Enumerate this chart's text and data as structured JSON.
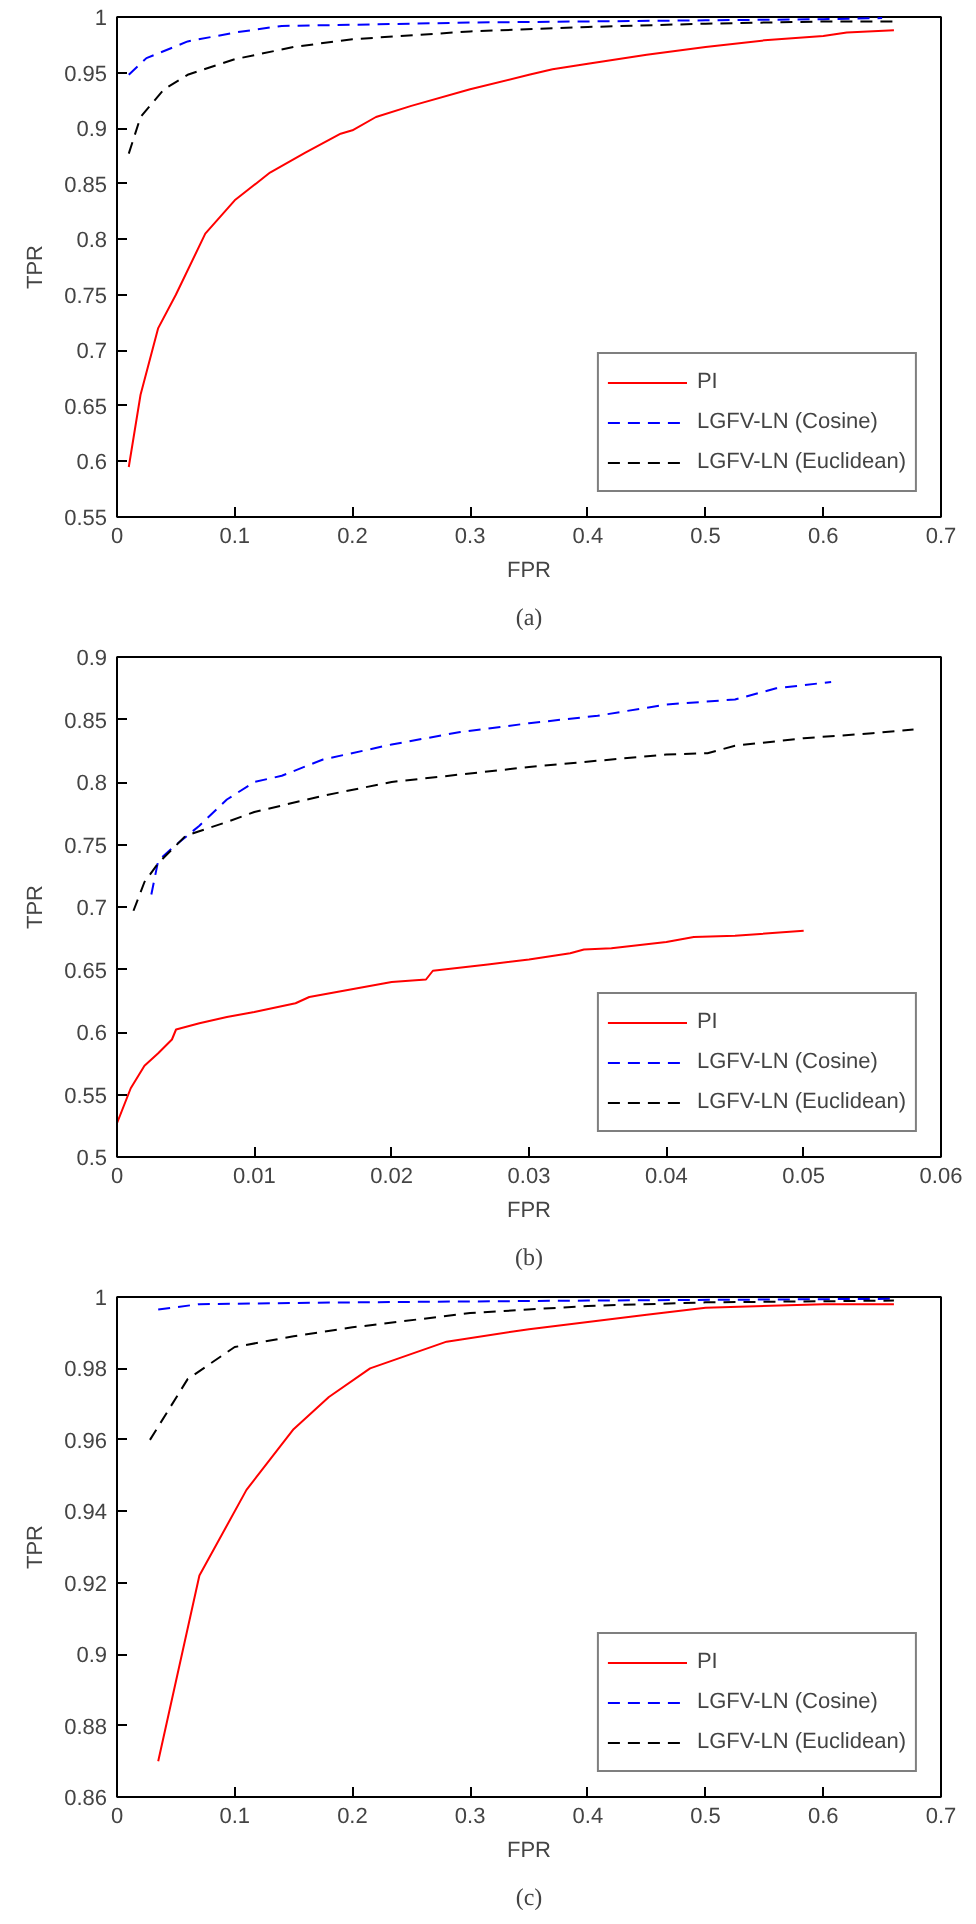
{
  "chart_data": [
    {
      "type": "line",
      "xlabel": "FPR",
      "ylabel": "TPR",
      "annotations": [
        "(a)"
      ],
      "xlim": [
        0,
        0.7
      ],
      "ylim": [
        0.55,
        1
      ],
      "xticks": [
        0,
        0.1,
        0.2,
        0.3,
        0.4,
        0.5,
        0.6,
        0.7
      ],
      "yticks": [
        0.55,
        0.6,
        0.65,
        0.7,
        0.75,
        0.8,
        0.85,
        0.9,
        0.95,
        1
      ],
      "legend": "bottom right",
      "series": [
        {
          "name": "PI",
          "color": "#ff0000",
          "line_style": "solid",
          "x": [
            0.01,
            0.02,
            0.035,
            0.05,
            0.075,
            0.1,
            0.13,
            0.16,
            0.19,
            0.2,
            0.22,
            0.25,
            0.3,
            0.35,
            0.37,
            0.4,
            0.45,
            0.5,
            0.55,
            0.6,
            0.62,
            0.66
          ],
          "values": [
            0.595,
            0.66,
            0.72,
            0.75,
            0.805,
            0.835,
            0.86,
            0.878,
            0.895,
            0.898,
            0.91,
            0.92,
            0.935,
            0.948,
            0.953,
            0.958,
            0.966,
            0.973,
            0.979,
            0.983,
            0.986,
            0.988
          ]
        },
        {
          "name": "LGFV-LN (Cosine)",
          "color": "#0000ff",
          "line_style": "dashed",
          "x": [
            0.01,
            0.025,
            0.06,
            0.1,
            0.14,
            0.2,
            0.3,
            0.4,
            0.5,
            0.6,
            0.65
          ],
          "values": [
            0.948,
            0.963,
            0.978,
            0.986,
            0.992,
            0.993,
            0.995,
            0.996,
            0.997,
            0.998,
            0.999
          ]
        },
        {
          "name": "LGFV-LN (Euclidean)",
          "color": "#000000",
          "line_style": "dashed",
          "x": [
            0.01,
            0.02,
            0.04,
            0.06,
            0.1,
            0.15,
            0.2,
            0.3,
            0.4,
            0.5,
            0.6,
            0.66
          ],
          "values": [
            0.877,
            0.91,
            0.935,
            0.948,
            0.962,
            0.973,
            0.98,
            0.987,
            0.991,
            0.994,
            0.996,
            0.996
          ]
        }
      ]
    },
    {
      "type": "line",
      "xlabel": "FPR",
      "ylabel": "TPR",
      "annotations": [
        "(b)"
      ],
      "xlim": [
        0,
        0.06
      ],
      "ylim": [
        0.5,
        0.9
      ],
      "xticks": [
        0,
        0.01,
        0.02,
        0.03,
        0.04,
        0.05,
        0.06
      ],
      "yticks": [
        0.5,
        0.55,
        0.6,
        0.65,
        0.7,
        0.75,
        0.8,
        0.85,
        0.9
      ],
      "legend": "bottom right",
      "series": [
        {
          "name": "PI",
          "color": "#ff0000",
          "line_style": "solid",
          "x": [
            0,
            0.001,
            0.002,
            0.003,
            0.004,
            0.0043,
            0.006,
            0.008,
            0.01,
            0.013,
            0.014,
            0.017,
            0.02,
            0.0225,
            0.023,
            0.027,
            0.03,
            0.033,
            0.034,
            0.036,
            0.04,
            0.042,
            0.045,
            0.05
          ],
          "values": [
            0.527,
            0.555,
            0.573,
            0.583,
            0.594,
            0.602,
            0.607,
            0.612,
            0.616,
            0.623,
            0.628,
            0.634,
            0.64,
            0.642,
            0.649,
            0.654,
            0.658,
            0.663,
            0.666,
            0.667,
            0.672,
            0.676,
            0.677,
            0.681
          ]
        },
        {
          "name": "LGFV-LN (Cosine)",
          "color": "#0000ff",
          "line_style": "dashed",
          "x": [
            0.0025,
            0.003,
            0.004,
            0.006,
            0.008,
            0.01,
            0.012,
            0.015,
            0.02,
            0.025,
            0.03,
            0.035,
            0.04,
            0.045,
            0.048,
            0.052
          ],
          "values": [
            0.71,
            0.737,
            0.747,
            0.765,
            0.786,
            0.8,
            0.805,
            0.818,
            0.83,
            0.84,
            0.847,
            0.853,
            0.862,
            0.866,
            0.875,
            0.88
          ]
        },
        {
          "name": "LGFV-LN (Euclidean)",
          "color": "#000000",
          "line_style": "dashed",
          "x": [
            0.0012,
            0.002,
            0.003,
            0.005,
            0.008,
            0.01,
            0.015,
            0.02,
            0.025,
            0.03,
            0.035,
            0.04,
            0.043,
            0.045,
            0.05,
            0.055,
            0.058
          ],
          "values": [
            0.697,
            0.72,
            0.735,
            0.757,
            0.768,
            0.776,
            0.789,
            0.8,
            0.806,
            0.812,
            0.817,
            0.822,
            0.823,
            0.829,
            0.835,
            0.839,
            0.842
          ]
        }
      ]
    },
    {
      "type": "line",
      "xlabel": "FPR",
      "ylabel": "TPR",
      "annotations": [
        "(c)"
      ],
      "xlim": [
        0,
        0.7
      ],
      "ylim": [
        0.86,
        1
      ],
      "xticks": [
        0,
        0.1,
        0.2,
        0.3,
        0.4,
        0.5,
        0.6,
        0.7
      ],
      "yticks": [
        0.86,
        0.88,
        0.9,
        0.92,
        0.94,
        0.96,
        0.98,
        1
      ],
      "legend": "bottom right",
      "series": [
        {
          "name": "PI",
          "color": "#ff0000",
          "line_style": "solid",
          "x": [
            0.035,
            0.07,
            0.11,
            0.15,
            0.18,
            0.215,
            0.28,
            0.35,
            0.4,
            0.45,
            0.5,
            0.6,
            0.66
          ],
          "values": [
            0.87,
            0.922,
            0.946,
            0.963,
            0.972,
            0.98,
            0.9875,
            0.991,
            0.993,
            0.995,
            0.997,
            0.998,
            0.998
          ]
        },
        {
          "name": "LGFV-LN (Cosine)",
          "color": "#0000ff",
          "line_style": "dashed",
          "x": [
            0.035,
            0.07,
            0.2,
            0.4,
            0.66
          ],
          "values": [
            0.9965,
            0.998,
            0.9985,
            0.999,
            0.9995
          ]
        },
        {
          "name": "LGFV-LN (Euclidean)",
          "color": "#000000",
          "line_style": "dashed",
          "x": [
            0.028,
            0.06,
            0.1,
            0.15,
            0.2,
            0.3,
            0.4,
            0.5,
            0.66
          ],
          "values": [
            0.96,
            0.977,
            0.986,
            0.989,
            0.9915,
            0.9955,
            0.9975,
            0.9985,
            0.999
          ]
        }
      ]
    }
  ]
}
